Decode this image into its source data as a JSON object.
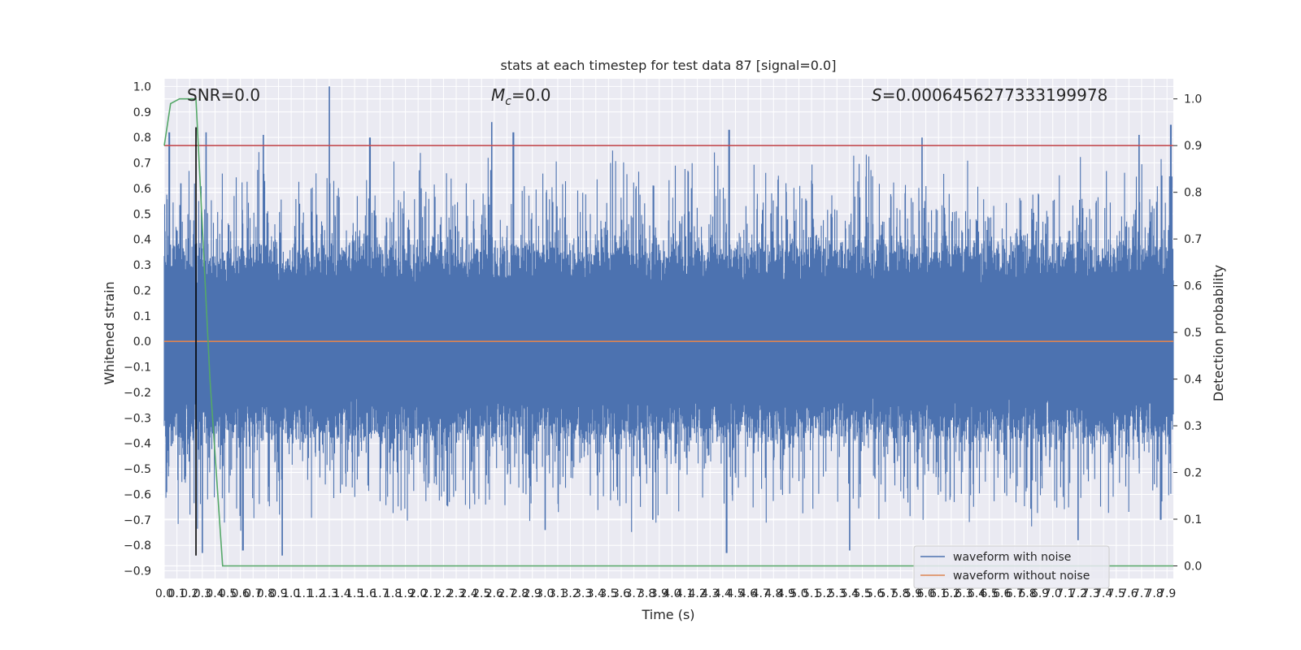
{
  "chart_data": {
    "type": "line",
    "title": "stats at each timestep for test data 87 [signal=0.0]",
    "xlabel": "Time (s)",
    "ylabel": "Whitened strain",
    "y2label": "Detection probability",
    "xlim": [
      0.0,
      7.95
    ],
    "ylim": [
      -0.93,
      1.03
    ],
    "y2lim": [
      -0.027,
      1.043
    ],
    "x_ticks": [
      "0.0",
      "0.1",
      "0.2",
      "0.3",
      "0.4",
      "0.5",
      "0.6",
      "0.7",
      "0.8",
      "0.9",
      "1.0",
      "1.1",
      "1.2",
      "1.3",
      "1.4",
      "1.5",
      "1.6",
      "1.7",
      "1.8",
      "1.9",
      "2.0",
      "2.1",
      "2.2",
      "2.3",
      "2.4",
      "2.5",
      "2.6",
      "2.7",
      "2.8",
      "2.9",
      "3.0",
      "3.1",
      "3.2",
      "3.3",
      "3.4",
      "3.5",
      "3.6",
      "3.7",
      "3.8",
      "3.9",
      "4.0",
      "4.1",
      "4.2",
      "4.3",
      "4.4",
      "4.5",
      "4.6",
      "4.7",
      "4.8",
      "4.9",
      "5.0",
      "5.1",
      "5.2",
      "5.3",
      "5.4",
      "5.5",
      "5.6",
      "5.7",
      "5.8",
      "5.9",
      "6.0",
      "6.1",
      "6.2",
      "6.3",
      "6.4",
      "6.5",
      "6.6",
      "6.7",
      "6.8",
      "6.9",
      "7.0",
      "7.1",
      "7.2",
      "7.3",
      "7.4",
      "7.5",
      "7.6",
      "7.7",
      "7.8",
      "7.9"
    ],
    "y_ticks": [
      "1.0",
      "0.9",
      "0.8",
      "0.7",
      "0.6",
      "0.5",
      "0.4",
      "0.3",
      "0.2",
      "0.1",
      "0.0",
      "−0.1",
      "−0.2",
      "−0.3",
      "−0.4",
      "−0.5",
      "−0.6",
      "−0.7",
      "−0.8",
      "−0.9"
    ],
    "y_tick_values": [
      1.0,
      0.9,
      0.8,
      0.7,
      0.6,
      0.5,
      0.4,
      0.3,
      0.2,
      0.1,
      0.0,
      -0.1,
      -0.2,
      -0.3,
      -0.4,
      -0.5,
      -0.6,
      -0.7,
      -0.8,
      -0.9
    ],
    "y2_ticks": [
      "1.0",
      "0.9",
      "0.8",
      "0.7",
      "0.6",
      "0.5",
      "0.4",
      "0.3",
      "0.2",
      "0.1",
      "0.0"
    ],
    "y2_tick_values": [
      1.0,
      0.9,
      0.8,
      0.7,
      0.6,
      0.5,
      0.4,
      0.3,
      0.2,
      0.1,
      0.0
    ],
    "annotations": {
      "snr": "SNR=0.0",
      "mc_symbol": "M",
      "mc_sub": "c",
      "mc_value": "=0.0",
      "s_symbol": "S",
      "s_value": "=0.0006456277333199978"
    },
    "series": [
      {
        "name": "waveform with noise",
        "color": "#4c72b0",
        "style": "noise",
        "envelope_pos": [
          0.3,
          0.45
        ],
        "envelope_neg": [
          -0.3,
          -0.45
        ],
        "peaks": [
          [
            0.04,
            0.82
          ],
          [
            0.13,
            0.62
          ],
          [
            0.33,
            0.82
          ],
          [
            0.3,
            -0.83
          ],
          [
            0.62,
            -0.82
          ],
          [
            0.78,
            0.81
          ],
          [
            0.93,
            -0.84
          ],
          [
            1.3,
            1.0
          ],
          [
            1.62,
            0.8
          ],
          [
            2.58,
            0.86
          ],
          [
            2.75,
            0.82
          ],
          [
            3.0,
            -0.74
          ],
          [
            3.85,
            -0.7
          ],
          [
            4.45,
            0.83
          ],
          [
            4.43,
            -0.83
          ],
          [
            5.4,
            -0.82
          ],
          [
            5.97,
            0.8
          ],
          [
            7.2,
            -0.78
          ],
          [
            7.68,
            0.81
          ],
          [
            7.93,
            0.85
          ],
          [
            7.85,
            -0.7
          ]
        ],
        "seed": 87
      },
      {
        "name": "waveform without noise",
        "color": "#dd8452",
        "values_const": 0.0
      },
      {
        "name": "detection probability",
        "color": "#55a868",
        "axis": "right",
        "x": [
          0.0,
          0.05,
          0.12,
          0.25,
          0.36,
          0.46,
          7.95
        ],
        "y": [
          0.9,
          0.99,
          1.0,
          1.0,
          0.4,
          0.0,
          0.0
        ]
      },
      {
        "name": "threshold",
        "color": "#c44e52",
        "axis": "right",
        "values_const": 0.9
      },
      {
        "name": "marker",
        "color": "#000000",
        "x_const": 0.25,
        "y_range": [
          -0.84,
          0.84
        ]
      }
    ],
    "legend": {
      "position": "lower-right",
      "entries": [
        {
          "label": "waveform with noise",
          "color": "#4c72b0"
        },
        {
          "label": "waveform without noise",
          "color": "#dd8452"
        }
      ]
    },
    "colors": {
      "axes_bg": "#eaeaf2",
      "grid": "#ffffff"
    }
  }
}
